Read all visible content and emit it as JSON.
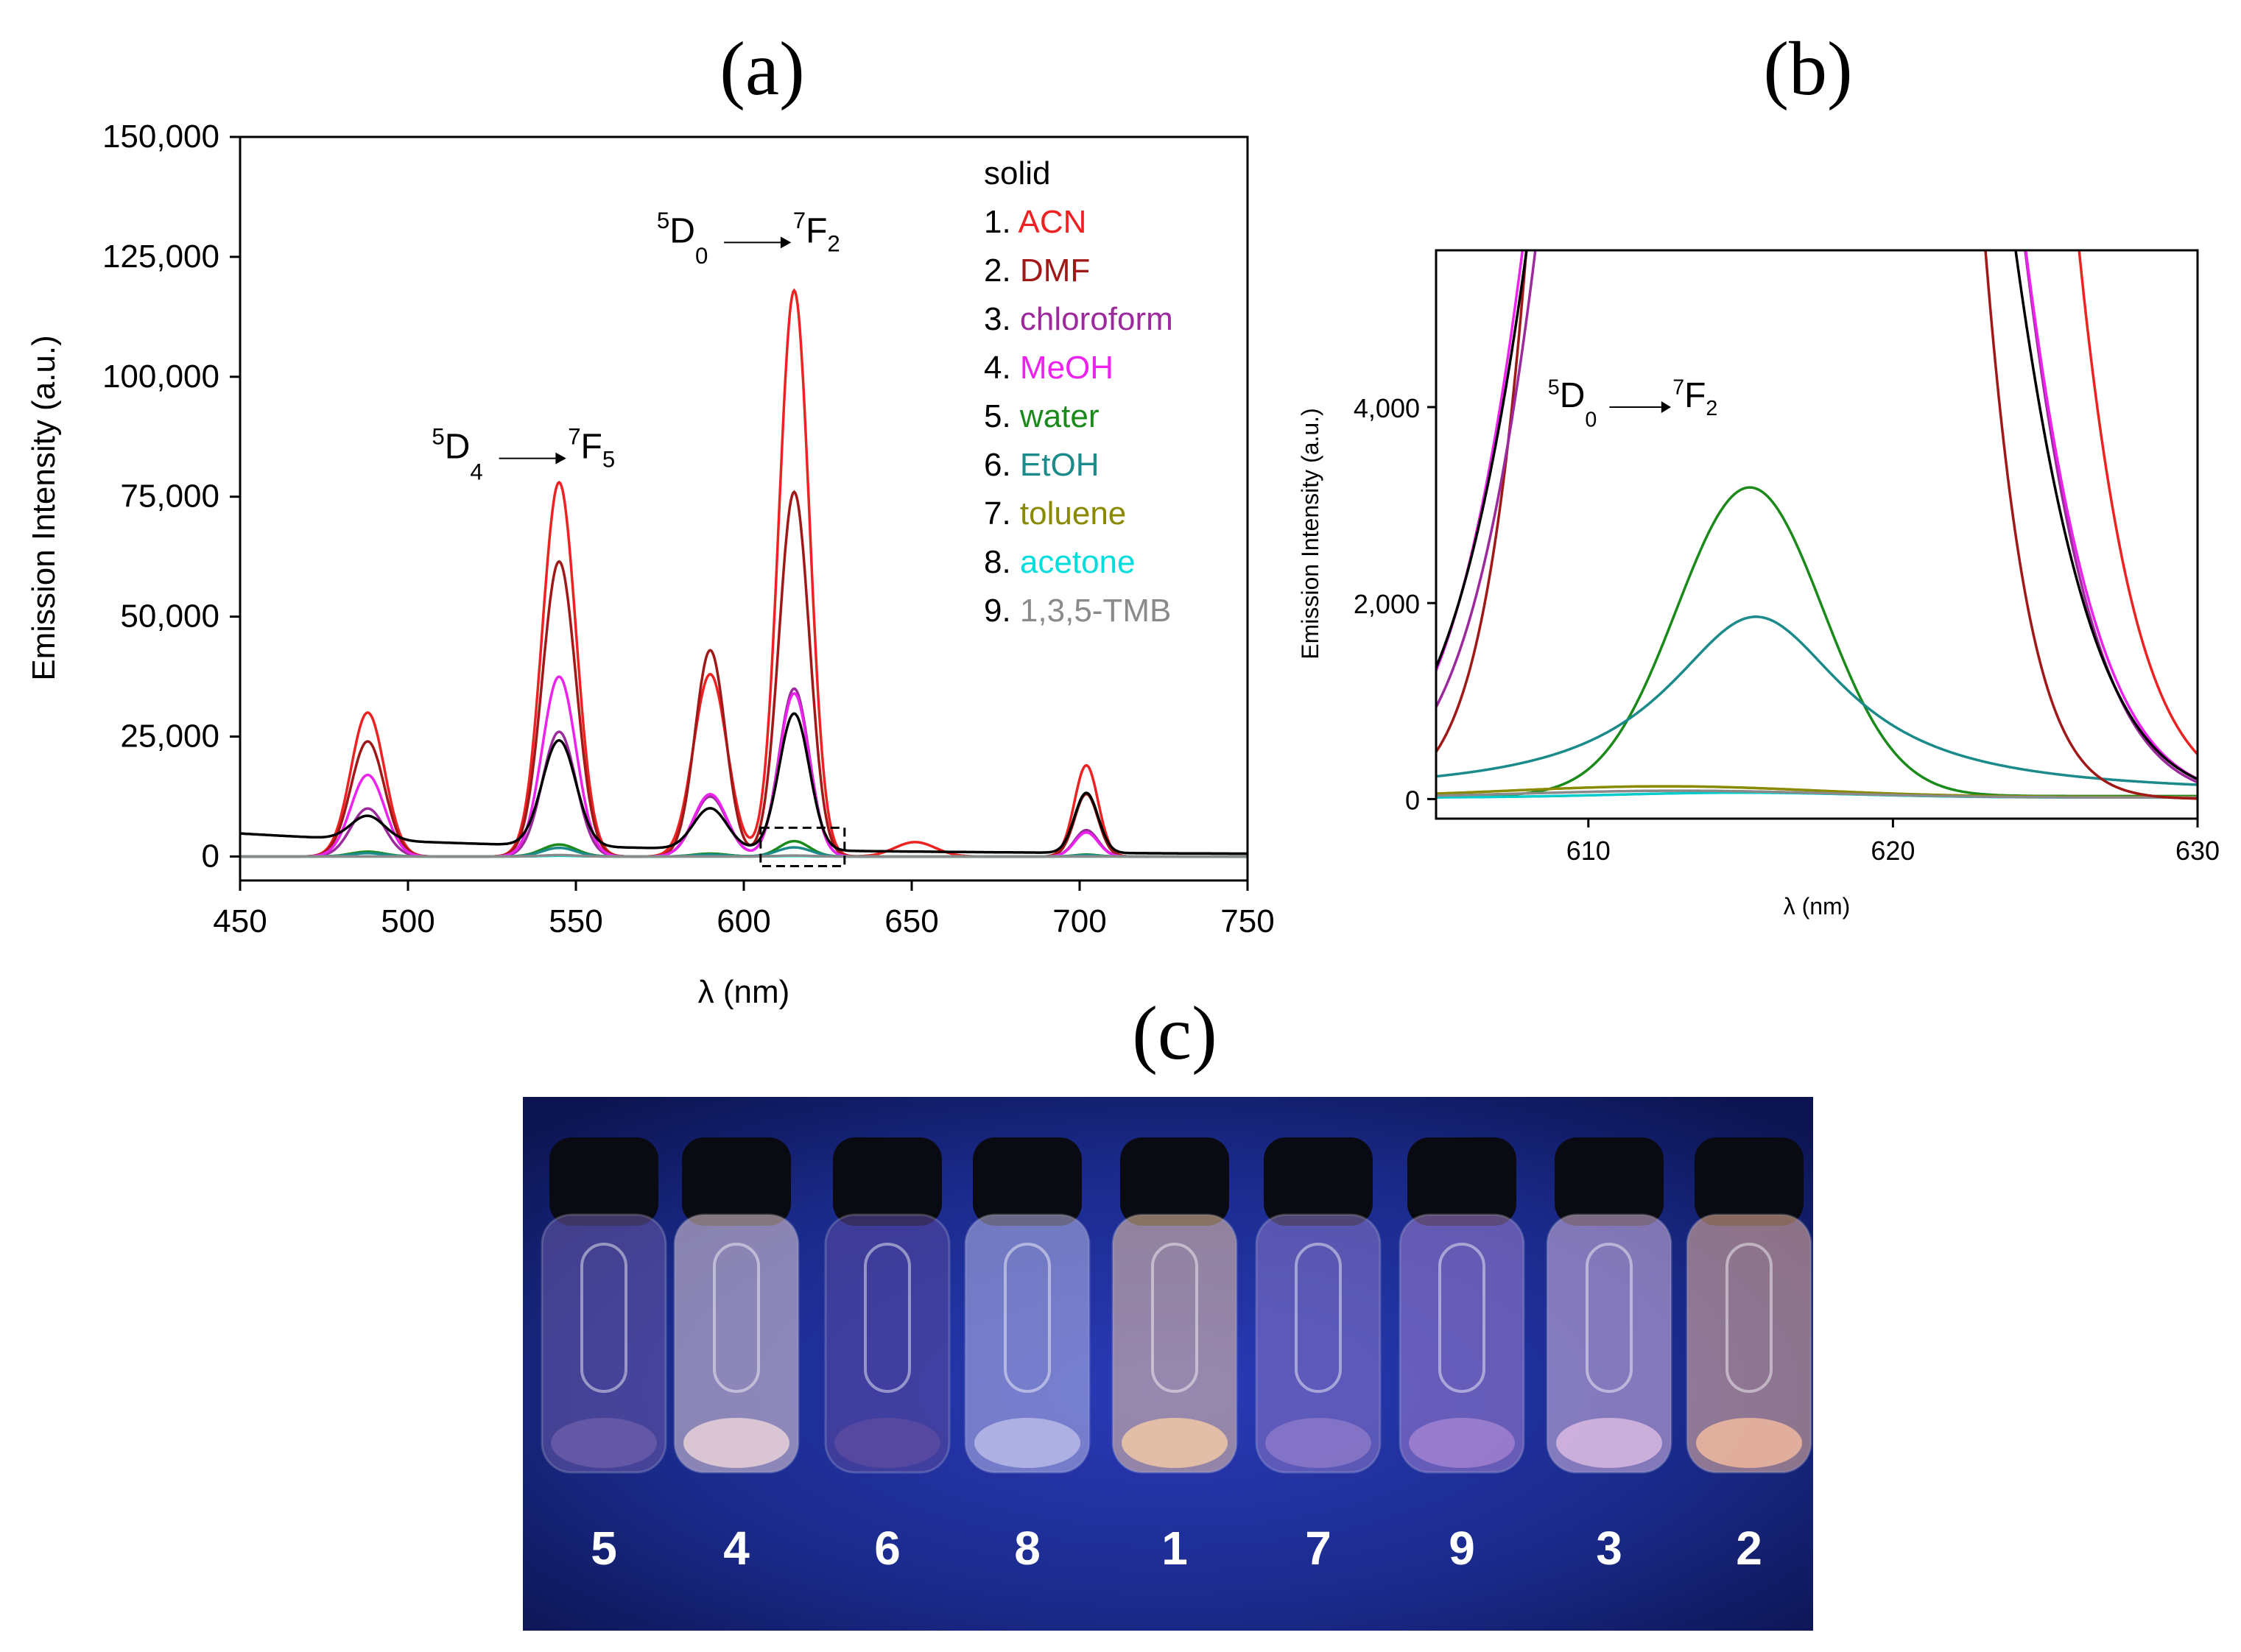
{
  "panel_labels": {
    "a": "(a)",
    "b": "(b)",
    "c": "(c)"
  },
  "chart_data": [
    {
      "id": "a",
      "type": "line",
      "title": "",
      "xlabel": "λ (nm)",
      "ylabel": "Emission Intensity (a.u.)",
      "xlim": [
        450,
        750
      ],
      "ylim": [
        -5000,
        150000
      ],
      "xticks": [
        450,
        500,
        550,
        600,
        650,
        700,
        750
      ],
      "xtick_labels": [
        "450",
        "500",
        "550",
        "600",
        "650",
        "700",
        "750"
      ],
      "yticks": [
        0,
        25000,
        50000,
        75000,
        100000,
        125000,
        150000
      ],
      "ytick_labels": [
        "0",
        "25,000",
        "50,000",
        "75,000",
        "100,000",
        "125,000",
        "150,000"
      ],
      "annotations": [
        {
          "pre": "5",
          "main": "D",
          "sub": "4",
          "pre2": "7",
          "main2": "F",
          "sub2": "5",
          "x": 545,
          "y": 83000
        },
        {
          "pre": "5",
          "main": "D",
          "sub": "0",
          "pre2": "7",
          "main2": "F",
          "sub2": "2",
          "x": 612,
          "y": 128000
        }
      ],
      "legend_title": "solid",
      "series": [
        {
          "name": "1. ACN",
          "label_num": "1.",
          "label_name": "ACN",
          "color": "#ee2222",
          "base": 0,
          "peaks": [
            [
              488,
              30000,
              5
            ],
            [
              545,
              78000,
              5
            ],
            [
              590,
              38000,
              5
            ],
            [
              615,
              118000,
              4.5
            ],
            [
              651,
              3000,
              6
            ],
            [
              702,
              19000,
              3.5
            ]
          ]
        },
        {
          "name": "2. DMF",
          "label_num": "2.",
          "label_name": "DMF",
          "color": "#a01818",
          "base": 0,
          "peaks": [
            [
              488,
              24000,
              5
            ],
            [
              545,
              61500,
              5
            ],
            [
              590,
              43000,
              4.5
            ],
            [
              615,
              76000,
              4.5
            ],
            [
              702,
              13000,
              3.5
            ]
          ]
        },
        {
          "name": "3. chloroform",
          "label_num": "3.",
          "label_name": "chloroform",
          "color": "#9c2a9c",
          "base": 0,
          "peaks": [
            [
              488,
              10000,
              5
            ],
            [
              545,
              26000,
              5
            ],
            [
              590,
              12500,
              5
            ],
            [
              615,
              35000,
              4.5
            ],
            [
              702,
              5500,
              3.5
            ]
          ]
        },
        {
          "name": "4. MeOH",
          "label_num": "4.",
          "label_name": "MeOH",
          "color": "#ee22ee",
          "base": 0,
          "peaks": [
            [
              488,
              17000,
              5
            ],
            [
              545,
              37500,
              5
            ],
            [
              590,
              13000,
              5
            ],
            [
              615,
              34000,
              4.5
            ],
            [
              702,
              5000,
              3.5
            ]
          ]
        },
        {
          "name": "5. water",
          "label_num": "5.",
          "label_name": "water",
          "color": "#1a8a1a",
          "base": 0,
          "peaks": [
            [
              488,
              1000,
              5
            ],
            [
              545,
              2500,
              5
            ],
            [
              590,
              600,
              5
            ],
            [
              615,
              3200,
              4.5
            ],
            [
              702,
              400,
              3.5
            ]
          ]
        },
        {
          "name": "6. EtOH",
          "label_num": "6.",
          "label_name": "EtOH",
          "color": "#1a8a8a",
          "base": 0,
          "peaks": [
            [
              488,
              700,
              5
            ],
            [
              545,
              1800,
              5
            ],
            [
              590,
              400,
              5
            ],
            [
              615,
              1900,
              5
            ],
            [
              702,
              300,
              3.5
            ]
          ]
        },
        {
          "name": "7. toluene",
          "label_num": "7.",
          "label_name": "toluene",
          "color": "#8a8a00",
          "base": 0,
          "peaks": [
            [
              545,
              200,
              5
            ],
            [
              615,
              150,
              5
            ]
          ]
        },
        {
          "name": "8. acetone",
          "label_num": "8.",
          "label_name": "acetone",
          "color": "#00dddd",
          "base": 0,
          "peaks": [
            [
              545,
              150,
              5
            ],
            [
              615,
              100,
              5
            ]
          ]
        },
        {
          "name": "9. 1,3,5-TMB",
          "label_num": "9.",
          "label_name": "1,3,5-TMB",
          "color": "#8a8a8a",
          "base": 0,
          "peaks": [
            [
              545,
              300,
              5
            ],
            [
              615,
              200,
              5
            ]
          ]
        },
        {
          "name": "solid",
          "label_num": "",
          "label_name": "solid",
          "color": "#000000",
          "base": 4500,
          "decay": true,
          "peaks": [
            [
              488,
              5000,
              5
            ],
            [
              545,
              22000,
              5
            ],
            [
              590,
              8500,
              5
            ],
            [
              615,
              28500,
              4.5
            ],
            [
              702,
              12500,
              3.5
            ]
          ]
        }
      ],
      "inset_box": {
        "x": [
          605,
          630
        ],
        "y": [
          -2000,
          6000
        ]
      }
    },
    {
      "id": "b",
      "type": "line",
      "title": "",
      "xlabel": "λ (nm)",
      "ylabel": "Emission Intensity (a.u.)",
      "xlim": [
        605,
        630
      ],
      "ylim": [
        -200,
        5600
      ],
      "xticks": [
        610,
        620,
        630
      ],
      "xtick_labels": [
        "610",
        "620",
        "630"
      ],
      "yticks": [
        0,
        2000,
        4000
      ],
      "ytick_labels": [
        "0",
        "2,000",
        "4,000"
      ],
      "annotations": [
        {
          "pre": "5",
          "main": "D",
          "sub": "0",
          "pre2": "7",
          "main2": "F",
          "sub2": "2",
          "x": 612.5,
          "y": 4000
        }
      ],
      "series": [
        {
          "name": "water",
          "color": "#1a8a1a",
          "base": 30,
          "peaks": [
            [
              615.3,
              3150,
              2.4
            ]
          ]
        },
        {
          "name": "EtOH",
          "color": "#1a8a8a",
          "base": 40,
          "peaks": [
            [
              615.5,
              1820,
              3.6
            ]
          ],
          "lorentz": true
        },
        {
          "name": "toluene",
          "color": "#8a8a00",
          "base": 20,
          "peaks": [
            [
              612.5,
              110,
              5
            ]
          ]
        },
        {
          "name": "acetone",
          "color": "#00cccc",
          "base": 15,
          "peaks": [
            [
              615,
              50,
              4
            ]
          ]
        },
        {
          "name": "1,3,5-TMB",
          "color": "#8a8a8a",
          "base": 15,
          "peaks": [
            [
              613,
              70,
              5
            ]
          ]
        },
        {
          "name": "ACN",
          "color": "#ee2222",
          "base": 0,
          "peaks": [
            [
              615,
              118000,
              4.5
            ]
          ]
        },
        {
          "name": "DMF",
          "color": "#a01818",
          "base": 0,
          "peaks": [
            [
              615.5,
              76000,
              3.3
            ]
          ]
        },
        {
          "name": "chloroform",
          "color": "#9c2a9c",
          "base": 0,
          "peaks": [
            [
              616.3,
              35000,
              4.2
            ]
          ]
        },
        {
          "name": "MeOH",
          "color": "#ee22ee",
          "base": 0,
          "peaks": [
            [
              616.1,
              34000,
              4.35
            ]
          ]
        },
        {
          "name": "solid",
          "color": "#000000",
          "base": 0,
          "peaks": [
            [
              616.0,
              28500,
              4.45
            ]
          ]
        }
      ]
    }
  ],
  "photo": {
    "description_labels": [
      "5",
      "4",
      "6",
      "8",
      "1",
      "7",
      "9",
      "3",
      "2"
    ],
    "glow_colors": [
      "#6a5aa8",
      "#e8d0d8",
      "#5a4aa0",
      "#b8b8e8",
      "#f0c8a8",
      "#8a78c8",
      "#a080d0",
      "#d8b8e0",
      "#f0b8a0"
    ]
  }
}
